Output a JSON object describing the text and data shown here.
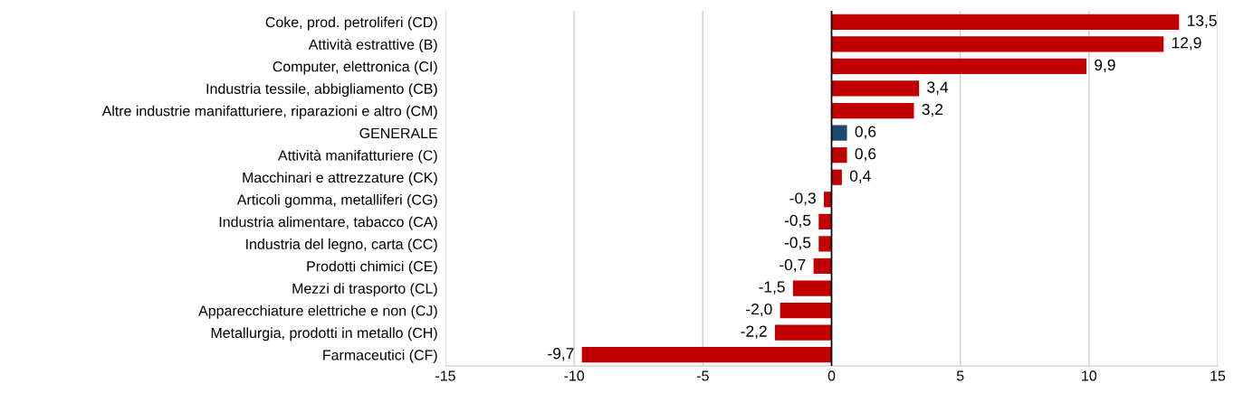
{
  "chart_data": {
    "type": "bar",
    "orientation": "horizontal",
    "categories": [
      "Coke, prod. petroliferi (CD)",
      "Attività estrattive (B)",
      "Computer, elettronica (CI)",
      "Industria tessile, abbigliamento (CB)",
      "Altre industrie manifatturiere, riparazioni e altro (CM)",
      "GENERALE",
      "Attività manifatturiere (C)",
      "Macchinari e attrezzature (CK)",
      "Articoli gomma, metalliferi (CG)",
      "Industria alimentare, tabacco (CA)",
      "Industria del legno, carta (CC)",
      "Prodotti chimici (CE)",
      "Mezzi di trasporto (CL)",
      "Apparecchiature elettriche e non (CJ)",
      "Metallurgia, prodotti in metallo (CH)",
      "Farmaceutici (CF)"
    ],
    "values": [
      13.5,
      12.9,
      9.9,
      3.4,
      3.2,
      0.6,
      0.6,
      0.4,
      -0.3,
      -0.5,
      -0.5,
      -0.7,
      -1.5,
      -2.0,
      -2.2,
      -9.7
    ],
    "value_labels": [
      "13,5",
      "12,9",
      "9,9",
      "3,4",
      "3,2",
      "0,6",
      "0,6",
      "0,4",
      "-0,3",
      "-0,5",
      "-0,5",
      "-0,7",
      "-1,5",
      "-2,0",
      "-2,2",
      "-9,7"
    ],
    "colors": [
      "#c00000",
      "#c00000",
      "#c00000",
      "#c00000",
      "#c00000",
      "#1a4a6e",
      "#c00000",
      "#c00000",
      "#c00000",
      "#c00000",
      "#c00000",
      "#c00000",
      "#c00000",
      "#c00000",
      "#c00000",
      "#c00000"
    ],
    "xlim": [
      -15,
      15
    ],
    "xticks": [
      -15,
      -10,
      -5,
      0,
      5,
      10,
      15
    ],
    "ref_lines": [
      {
        "axis": "x",
        "value": 0,
        "color": "#000000"
      }
    ],
    "grid": "x",
    "legend": false
  }
}
